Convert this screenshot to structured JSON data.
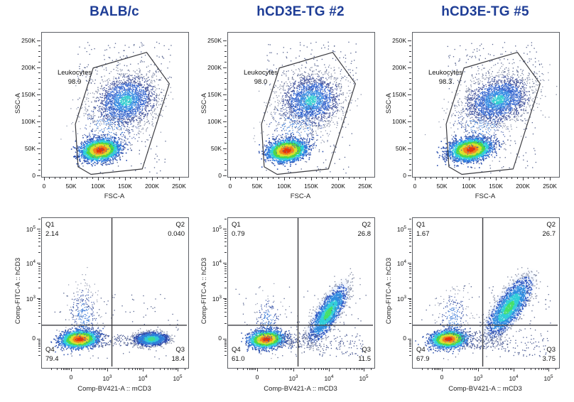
{
  "figure": {
    "background": "#ffffff",
    "title_color": "#1e3d96",
    "axis_line_color": "#5d6065",
    "gate_line_color": "#3b3b40"
  },
  "chart_data": {
    "type": "scatter",
    "description": "Flow cytometry pseudocolor dot plots, 2 rows x 3 columns. Top row: SSC-A vs FSC-A with Leukocytes gate. Bottom row: Comp-FITC-A::hCD3 vs Comp-BV421-A::mCD3 quadrant plots.",
    "palettes": {
      "hot": {
        "thresholds": [
          0.45,
          0.8,
          1.15,
          1.5,
          1.9,
          2.4
        ],
        "colors": [
          "#e2340f",
          "#f2811f",
          "#d8e032",
          "#4fd848",
          "#2ed0d8",
          "#2f7de0",
          "#2b4fae"
        ]
      },
      "granulo": {
        "thresholds": [
          0.4,
          0.8,
          1.4,
          2.0
        ],
        "colors": [
          "#35cfd0",
          "#3a8fe4",
          "#3a6ad0",
          "#44549c",
          "#8b93ab"
        ]
      },
      "q3cool": {
        "thresholds": [
          0.5,
          1.0,
          1.7,
          2.3
        ],
        "colors": [
          "#43dc8c",
          "#32c8d8",
          "#2f7cd8",
          "#2b4aae",
          "#8b93ab"
        ]
      },
      "diag": {
        "thresholds": [
          0.5,
          1.0,
          1.6,
          2.2
        ],
        "colors": [
          "#46e06a",
          "#30cfd8",
          "#2f8ce0",
          "#2b55c0",
          "#8b93ab"
        ]
      },
      "spray": {
        "thresholds": [
          0.9,
          1.8
        ],
        "colors": [
          "#3a7ad8",
          "#3a55a8",
          "#8b93ab"
        ]
      }
    },
    "plots": [
      {
        "title": "BALB/c",
        "xlabel": "FSC-A",
        "ylabel": "SSC-A",
        "units": "k",
        "axis": {
          "type": "linear",
          "x_ticks": [
            "0",
            "50K",
            "100K",
            "150K",
            "200K",
            "250K"
          ],
          "y_ticks": [
            "250K",
            "200K",
            "150K",
            "100K",
            "50K",
            "0"
          ],
          "x_range": [
            0,
            262000
          ],
          "y_range": [
            0,
            262000
          ]
        },
        "gate": {
          "name": "Leukocytes",
          "value": "98.9",
          "polygon_k": [
            [
              190,
              228
            ],
            [
              232,
              170
            ],
            [
              182,
              12
            ],
            [
              87,
              2
            ],
            [
              63,
              16
            ],
            [
              58,
              95
            ],
            [
              91,
              199
            ]
          ]
        },
        "populations": [
          {
            "kind": "gauss",
            "cx": 103,
            "cy": 48,
            "sx": 17,
            "sy": 9.5,
            "rot": -8,
            "n": 2600,
            "palette": "hot",
            "halo": true,
            "ps": 1.6
          },
          {
            "kind": "gauss",
            "cx": 151,
            "cy": 139,
            "sx": 29,
            "sy": 23,
            "rot": -20,
            "n": 2200,
            "palette": "granulo",
            "ps": 1.3
          },
          {
            "kind": "gauss",
            "cx": 122,
            "cy": 92,
            "sx": 30,
            "sy": 26,
            "rot": 0,
            "n": 330,
            "palette": "spray",
            "ps": 1.2
          },
          {
            "kind": "uniform",
            "x0": 60,
            "x1": 235,
            "y0": 170,
            "y1": 248,
            "n": 130,
            "color": "#55628e"
          },
          {
            "kind": "uniform",
            "x0": 62,
            "x1": 225,
            "y0": 5,
            "y1": 200,
            "n": 140,
            "color": "#55628e"
          }
        ]
      },
      {
        "title": "hCD3E-TG #2",
        "xlabel": "FSC-A",
        "ylabel": "SSC-A",
        "units": "k",
        "axis": {
          "type": "linear",
          "x_ticks": [
            "0",
            "50K",
            "100K",
            "150K",
            "200K",
            "250K"
          ],
          "y_ticks": [
            "250K",
            "200K",
            "150K",
            "100K",
            "50K",
            "0"
          ],
          "x_range": [
            0,
            262000
          ],
          "y_range": [
            0,
            262000
          ]
        },
        "gate": {
          "name": "Leukocytes",
          "value": "98.0",
          "polygon_k": [
            [
              190,
              228
            ],
            [
              232,
              170
            ],
            [
              182,
              12
            ],
            [
              87,
              2
            ],
            [
              63,
              16
            ],
            [
              58,
              95
            ],
            [
              91,
              199
            ]
          ]
        },
        "populations": [
          {
            "kind": "gauss",
            "cx": 104,
            "cy": 47,
            "sx": 17,
            "sy": 9.5,
            "rot": -8,
            "n": 2500,
            "palette": "hot",
            "halo": true,
            "ps": 1.6
          },
          {
            "kind": "gauss",
            "cx": 149,
            "cy": 140,
            "sx": 28,
            "sy": 23,
            "rot": -15,
            "n": 2100,
            "palette": "granulo",
            "ps": 1.3
          },
          {
            "kind": "gauss",
            "cx": 122,
            "cy": 92,
            "sx": 30,
            "sy": 26,
            "rot": 0,
            "n": 320,
            "palette": "spray",
            "ps": 1.2
          },
          {
            "kind": "uniform",
            "x0": 60,
            "x1": 235,
            "y0": 170,
            "y1": 248,
            "n": 130,
            "color": "#55628e"
          },
          {
            "kind": "uniform",
            "x0": 62,
            "x1": 225,
            "y0": 5,
            "y1": 200,
            "n": 140,
            "color": "#55628e"
          }
        ]
      },
      {
        "title": "hCD3E-TG #5",
        "xlabel": "FSC-A",
        "ylabel": "SSC-A",
        "units": "k",
        "axis": {
          "type": "linear",
          "x_ticks": [
            "0",
            "50K",
            "100K",
            "150K",
            "200K",
            "250K"
          ],
          "y_ticks": [
            "250K",
            "200K",
            "150K",
            "100K",
            "50K",
            "0"
          ],
          "x_range": [
            0,
            262000
          ],
          "y_range": [
            0,
            262000
          ]
        },
        "gate": {
          "name": "Leukocytes",
          "value": "98.3",
          "polygon_k": [
            [
              190,
              228
            ],
            [
              232,
              170
            ],
            [
              182,
              12
            ],
            [
              87,
              2
            ],
            [
              63,
              16
            ],
            [
              58,
              95
            ],
            [
              91,
              199
            ]
          ]
        },
        "populations": [
          {
            "kind": "gauss",
            "cx": 102,
            "cy": 49,
            "sx": 18,
            "sy": 9.5,
            "rot": -8,
            "n": 2700,
            "palette": "hot",
            "halo": true,
            "ps": 1.6
          },
          {
            "kind": "gauss",
            "cx": 153,
            "cy": 141,
            "sx": 31,
            "sy": 21,
            "rot": -18,
            "n": 2500,
            "palette": "granulo",
            "ps": 1.3
          },
          {
            "kind": "gauss",
            "cx": 122,
            "cy": 95,
            "sx": 30,
            "sy": 26,
            "rot": 0,
            "n": 340,
            "palette": "spray",
            "ps": 1.2
          },
          {
            "kind": "uniform",
            "x0": 60,
            "x1": 235,
            "y0": 170,
            "y1": 248,
            "n": 130,
            "color": "#55628e"
          },
          {
            "kind": "uniform",
            "x0": 62,
            "x1": 225,
            "y0": 5,
            "y1": 200,
            "n": 140,
            "color": "#55628e"
          }
        ]
      },
      {
        "xlabel": "Comp-BV421-A :: mCD3",
        "ylabel": "Comp-FITC-A :: hCD3",
        "units": "frac",
        "axis": {
          "type": "logicle",
          "x_ticks": [
            "0",
            "10^3",
            "10^4",
            "10^5"
          ],
          "y_ticks": [
            "10^5",
            "10^4",
            "10^3",
            "0"
          ]
        },
        "quad_split": {
          "x_frac": 0.483,
          "y_frac": 0.722
        },
        "quads": [
          {
            "name": "Q1",
            "value": "2.14"
          },
          {
            "name": "Q2",
            "value": "0.040"
          },
          {
            "name": "Q3",
            "value": "18.4"
          },
          {
            "name": "Q4",
            "value": "79.4"
          }
        ],
        "populations": [
          {
            "kind": "gauss",
            "cx": 0.255,
            "cy": 0.813,
            "sx": 0.06,
            "sy": 0.028,
            "rot": -4,
            "n": 2300,
            "palette": "hot",
            "halo": true,
            "ps": 1.5
          },
          {
            "kind": "gauss",
            "cx": 0.752,
            "cy": 0.812,
            "sx": 0.055,
            "sy": 0.022,
            "rot": -2,
            "n": 1500,
            "palette": "q3cool",
            "halo": true,
            "ps": 1.4
          },
          {
            "kind": "gauss",
            "cx": 0.285,
            "cy": 0.66,
            "sx": 0.05,
            "sy": 0.1,
            "rot": 0,
            "n": 300,
            "palette": "spray",
            "ps": 1.2
          },
          {
            "kind": "uniform",
            "x0": 0.36,
            "x1": 0.66,
            "y0": 0.78,
            "y1": 0.86,
            "n": 110,
            "color": "#4a5a94"
          },
          {
            "kind": "uniform",
            "x0": 0.05,
            "x1": 0.95,
            "y0": 0.5,
            "y1": 0.95,
            "n": 120,
            "color": "#55628e"
          }
        ]
      },
      {
        "xlabel": "Comp-BV421-A :: mCD3",
        "ylabel": "Comp-FITC-A :: hCD3",
        "units": "frac",
        "axis": {
          "type": "logicle",
          "x_ticks": [
            "0",
            "10^3",
            "10^4",
            "10^5"
          ],
          "y_ticks": [
            "10^5",
            "10^4",
            "10^3",
            "0"
          ]
        },
        "quad_split": {
          "x_frac": 0.483,
          "y_frac": 0.722
        },
        "quads": [
          {
            "name": "Q1",
            "value": "0.79"
          },
          {
            "name": "Q2",
            "value": "26.8"
          },
          {
            "name": "Q3",
            "value": "11.5"
          },
          {
            "name": "Q4",
            "value": "61.0"
          }
        ],
        "populations": [
          {
            "kind": "gauss",
            "cx": 0.26,
            "cy": 0.813,
            "sx": 0.057,
            "sy": 0.028,
            "rot": -4,
            "n": 2100,
            "palette": "hot",
            "halo": true,
            "ps": 1.5
          },
          {
            "kind": "gauss",
            "cx": 0.688,
            "cy": 0.638,
            "sx": 0.105,
            "sy": 0.034,
            "rot": -58,
            "n": 1900,
            "palette": "diag",
            "halo": true,
            "ps": 1.4
          },
          {
            "kind": "gauss",
            "cx": 0.275,
            "cy": 0.69,
            "sx": 0.045,
            "sy": 0.08,
            "rot": 0,
            "n": 210,
            "palette": "spray",
            "ps": 1.2
          },
          {
            "kind": "uniform",
            "x0": 0.33,
            "x1": 0.62,
            "y0": 0.77,
            "y1": 0.87,
            "n": 170,
            "color": "#4a5a94"
          },
          {
            "kind": "uniform",
            "x0": 0.62,
            "x1": 0.93,
            "y0": 0.78,
            "y1": 0.93,
            "n": 90,
            "color": "#4a5a94"
          },
          {
            "kind": "uniform",
            "x0": 0.05,
            "x1": 0.95,
            "y0": 0.45,
            "y1": 0.95,
            "n": 110,
            "color": "#55628e"
          }
        ]
      },
      {
        "xlabel": "Comp-BV421-A :: mCD3",
        "ylabel": "Comp-FITC-A :: hCD3",
        "units": "frac",
        "axis": {
          "type": "logicle",
          "x_ticks": [
            "0",
            "10^3",
            "10^4",
            "10^5"
          ],
          "y_ticks": [
            "10^5",
            "10^4",
            "10^3",
            "0"
          ]
        },
        "quad_split": {
          "x_frac": 0.483,
          "y_frac": 0.722
        },
        "quads": [
          {
            "name": "Q1",
            "value": "1.67"
          },
          {
            "name": "Q2",
            "value": "26.7"
          },
          {
            "name": "Q3",
            "value": "3.75"
          },
          {
            "name": "Q4",
            "value": "67.9"
          }
        ],
        "populations": [
          {
            "kind": "gauss",
            "cx": 0.245,
            "cy": 0.813,
            "sx": 0.058,
            "sy": 0.028,
            "rot": -4,
            "n": 2100,
            "palette": "hot",
            "halo": true,
            "ps": 1.5
          },
          {
            "kind": "gauss",
            "cx": 0.662,
            "cy": 0.6,
            "sx": 0.115,
            "sy": 0.04,
            "rot": -55,
            "n": 2100,
            "palette": "diag",
            "halo": true,
            "ps": 1.4
          },
          {
            "kind": "gauss",
            "cx": 0.28,
            "cy": 0.675,
            "sx": 0.05,
            "sy": 0.09,
            "rot": 0,
            "n": 250,
            "palette": "spray",
            "ps": 1.2
          },
          {
            "kind": "uniform",
            "x0": 0.33,
            "x1": 0.63,
            "y0": 0.76,
            "y1": 0.88,
            "n": 200,
            "color": "#4a5a94"
          },
          {
            "kind": "uniform",
            "x0": 0.63,
            "x1": 0.93,
            "y0": 0.8,
            "y1": 0.93,
            "n": 60,
            "color": "#4a5a94"
          },
          {
            "kind": "uniform",
            "x0": 0.05,
            "x1": 0.95,
            "y0": 0.45,
            "y1": 0.95,
            "n": 110,
            "color": "#55628e"
          }
        ]
      }
    ]
  }
}
